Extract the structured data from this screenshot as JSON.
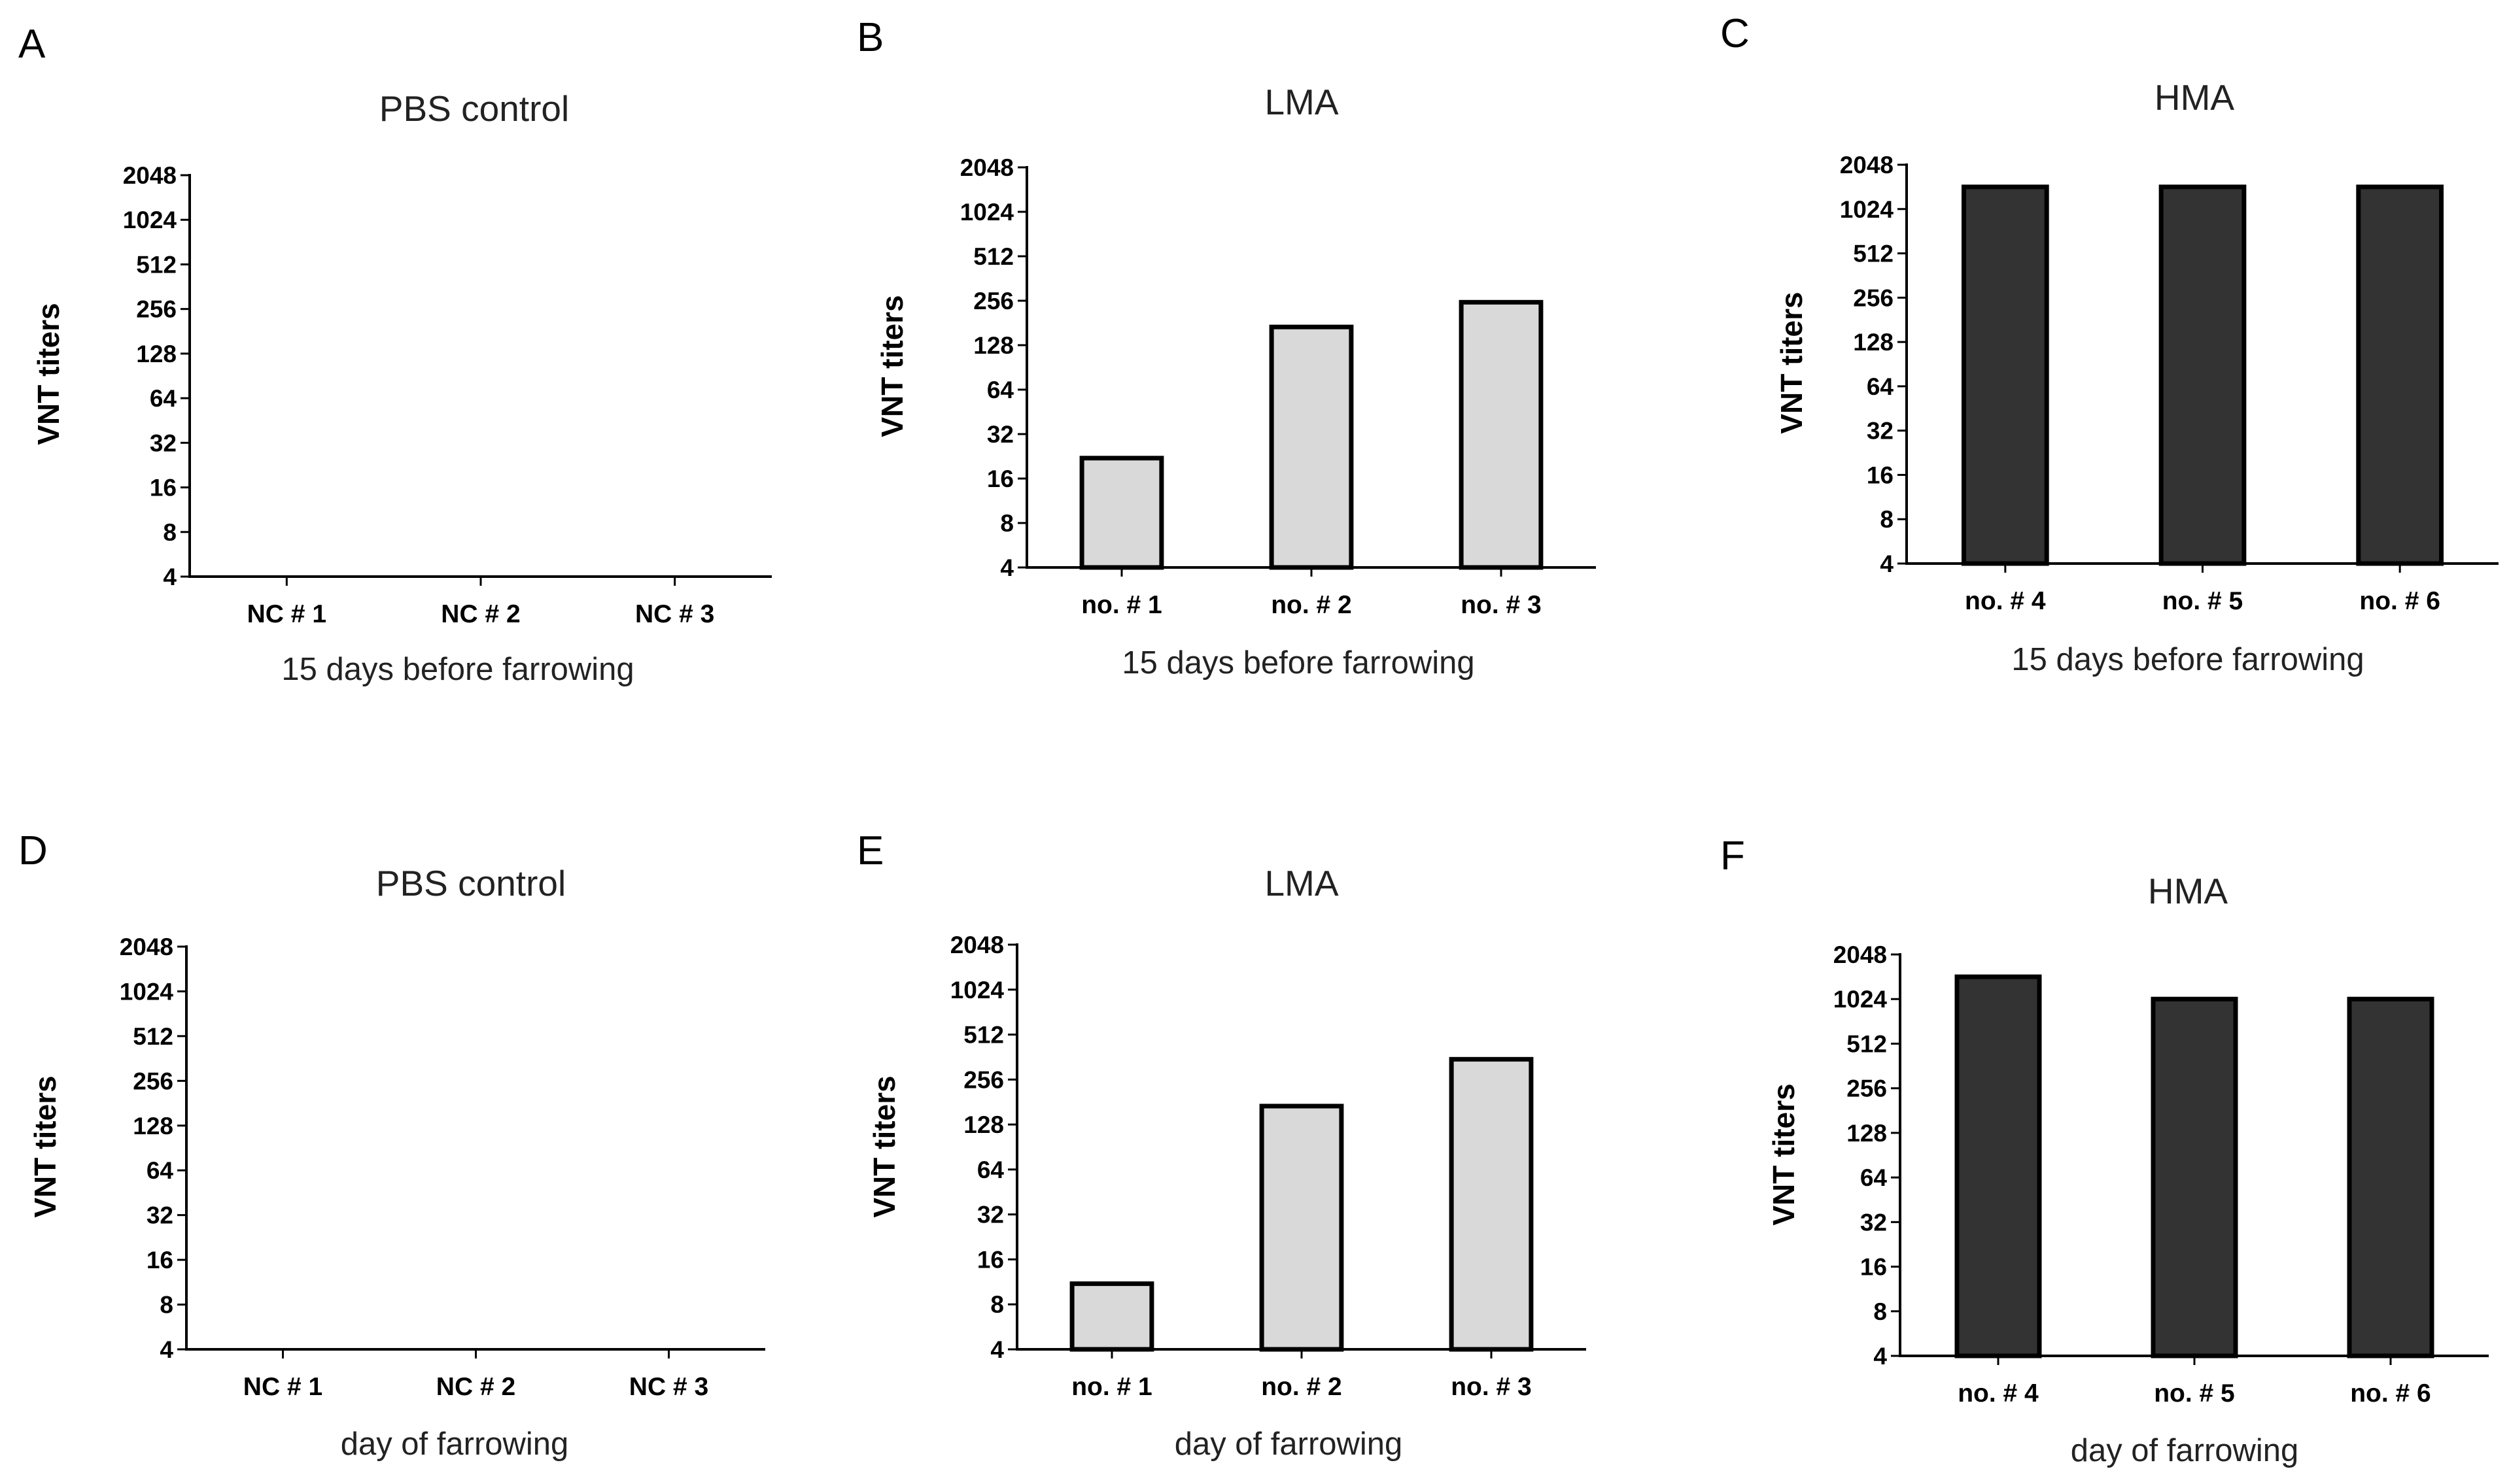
{
  "chart_data": [
    {
      "panel": "A",
      "type": "bar",
      "title": "PBS control",
      "xlabel": "15 days before farrowing",
      "ylabel": "VNT titers",
      "yscale": "log2",
      "ylim": [
        4,
        2048
      ],
      "yticks": [
        "4",
        "8",
        "16",
        "32",
        "64",
        "128",
        "256",
        "512",
        "1024",
        "2048"
      ],
      "categories": [
        "NC # 1",
        "NC # 2",
        "NC # 3"
      ],
      "values": [
        null,
        null,
        null
      ],
      "bar_color": "#d9d9d9"
    },
    {
      "panel": "B",
      "type": "bar",
      "title": "LMA",
      "xlabel": "15 days before farrowing",
      "ylabel": "VNT titers",
      "yscale": "log2",
      "ylim": [
        4,
        2048
      ],
      "yticks": [
        "4",
        "8",
        "16",
        "32",
        "64",
        "128",
        "256",
        "512",
        "1024",
        "2048"
      ],
      "categories": [
        "no. # 1",
        "no. # 2",
        "no. # 3"
      ],
      "values": [
        22,
        170,
        250
      ],
      "bar_color": "#d9d9d9"
    },
    {
      "panel": "C",
      "type": "bar",
      "title": "HMA",
      "xlabel": "15 days before farrowing",
      "ylabel": "VNT titers",
      "yscale": "log2",
      "ylim": [
        4,
        2048
      ],
      "yticks": [
        "4",
        "8",
        "16",
        "32",
        "64",
        "128",
        "256",
        "512",
        "1024",
        "2048"
      ],
      "categories": [
        "no. # 4",
        "no. # 5",
        "no. # 6"
      ],
      "values": [
        1448,
        1448,
        1448
      ],
      "bar_color": "#333333"
    },
    {
      "panel": "D",
      "type": "bar",
      "title": "PBS control",
      "xlabel": "day of farrowing",
      "ylabel": "VNT titers",
      "yscale": "log2",
      "ylim": [
        4,
        2048
      ],
      "yticks": [
        "4",
        "8",
        "16",
        "32",
        "64",
        "128",
        "256",
        "512",
        "1024",
        "2048"
      ],
      "categories": [
        "NC # 1",
        "NC # 2",
        "NC # 3"
      ],
      "values": [
        null,
        null,
        null
      ],
      "bar_color": "#d9d9d9"
    },
    {
      "panel": "E",
      "type": "bar",
      "title": "LMA",
      "xlabel": "day of farrowing",
      "ylabel": "VNT titers",
      "yscale": "log2",
      "ylim": [
        4,
        2048
      ],
      "yticks": [
        "4",
        "8",
        "16",
        "32",
        "64",
        "128",
        "256",
        "512",
        "1024",
        "2048"
      ],
      "categories": [
        "no. # 1",
        "no. # 2",
        "no. # 3"
      ],
      "values": [
        11,
        170,
        350
      ],
      "bar_color": "#d9d9d9"
    },
    {
      "panel": "F",
      "type": "bar",
      "title": "HMA",
      "xlabel": "day of farrowing",
      "ylabel": "VNT titers",
      "yscale": "log2",
      "ylim": [
        4,
        2048
      ],
      "yticks": [
        "4",
        "8",
        "16",
        "32",
        "64",
        "128",
        "256",
        "512",
        "1024",
        "2048"
      ],
      "categories": [
        "no. # 4",
        "no. # 5",
        "no. # 6"
      ],
      "values": [
        1448,
        1024,
        1024
      ],
      "bar_color": "#333333"
    }
  ]
}
